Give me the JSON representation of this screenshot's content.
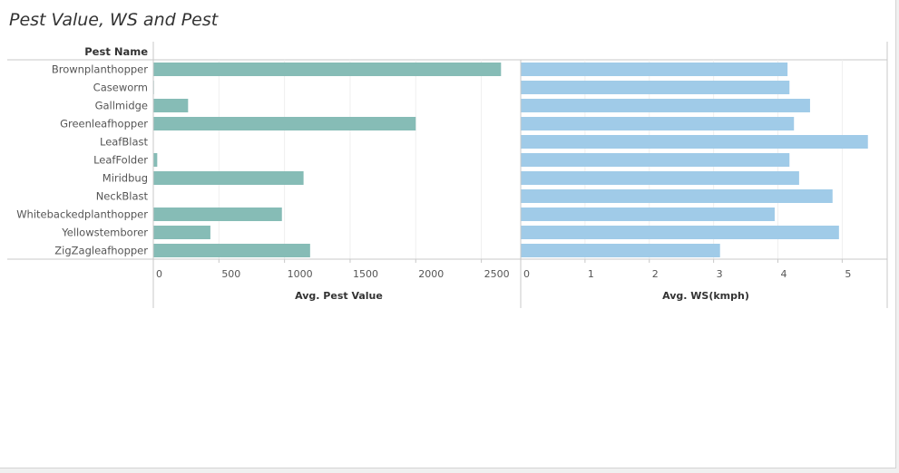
{
  "title": "Pest Value, WS and Pest",
  "colors": {
    "pest_value": "#86bcb6",
    "ws": "#a0cbe8",
    "axis": "#c8c8c8",
    "grid": "#efefef",
    "text": "#555555"
  },
  "chart_data": {
    "type": "bar",
    "orientation": "horizontal",
    "row_header": "Pest Name",
    "categories": [
      "Brownplanthopper",
      "Caseworm",
      "Gallmidge",
      "Greenleafhopper",
      "LeafBlast",
      "LeafFolder",
      "Miridbug",
      "NeckBlast",
      "Whitebackedplanthopper",
      "Yellowstemborer",
      "ZigZagleafhopper"
    ],
    "panels": [
      {
        "measure": "Avg. Pest Value",
        "xlim": [
          0,
          2800
        ],
        "ticks": [
          0,
          500,
          1000,
          1500,
          2000,
          2500
        ],
        "values": [
          2650,
          5,
          265,
          2000,
          0,
          30,
          1145,
          0,
          980,
          435,
          1195
        ],
        "grid": true
      },
      {
        "measure": "Avg. WS(kmph)",
        "xlim": [
          0,
          5.7
        ],
        "ticks": [
          0,
          1,
          2,
          3,
          4,
          5
        ],
        "values": [
          4.15,
          4.18,
          4.5,
          4.25,
          5.4,
          4.18,
          4.33,
          4.85,
          3.95,
          4.95,
          3.1
        ],
        "grid": true
      }
    ]
  }
}
